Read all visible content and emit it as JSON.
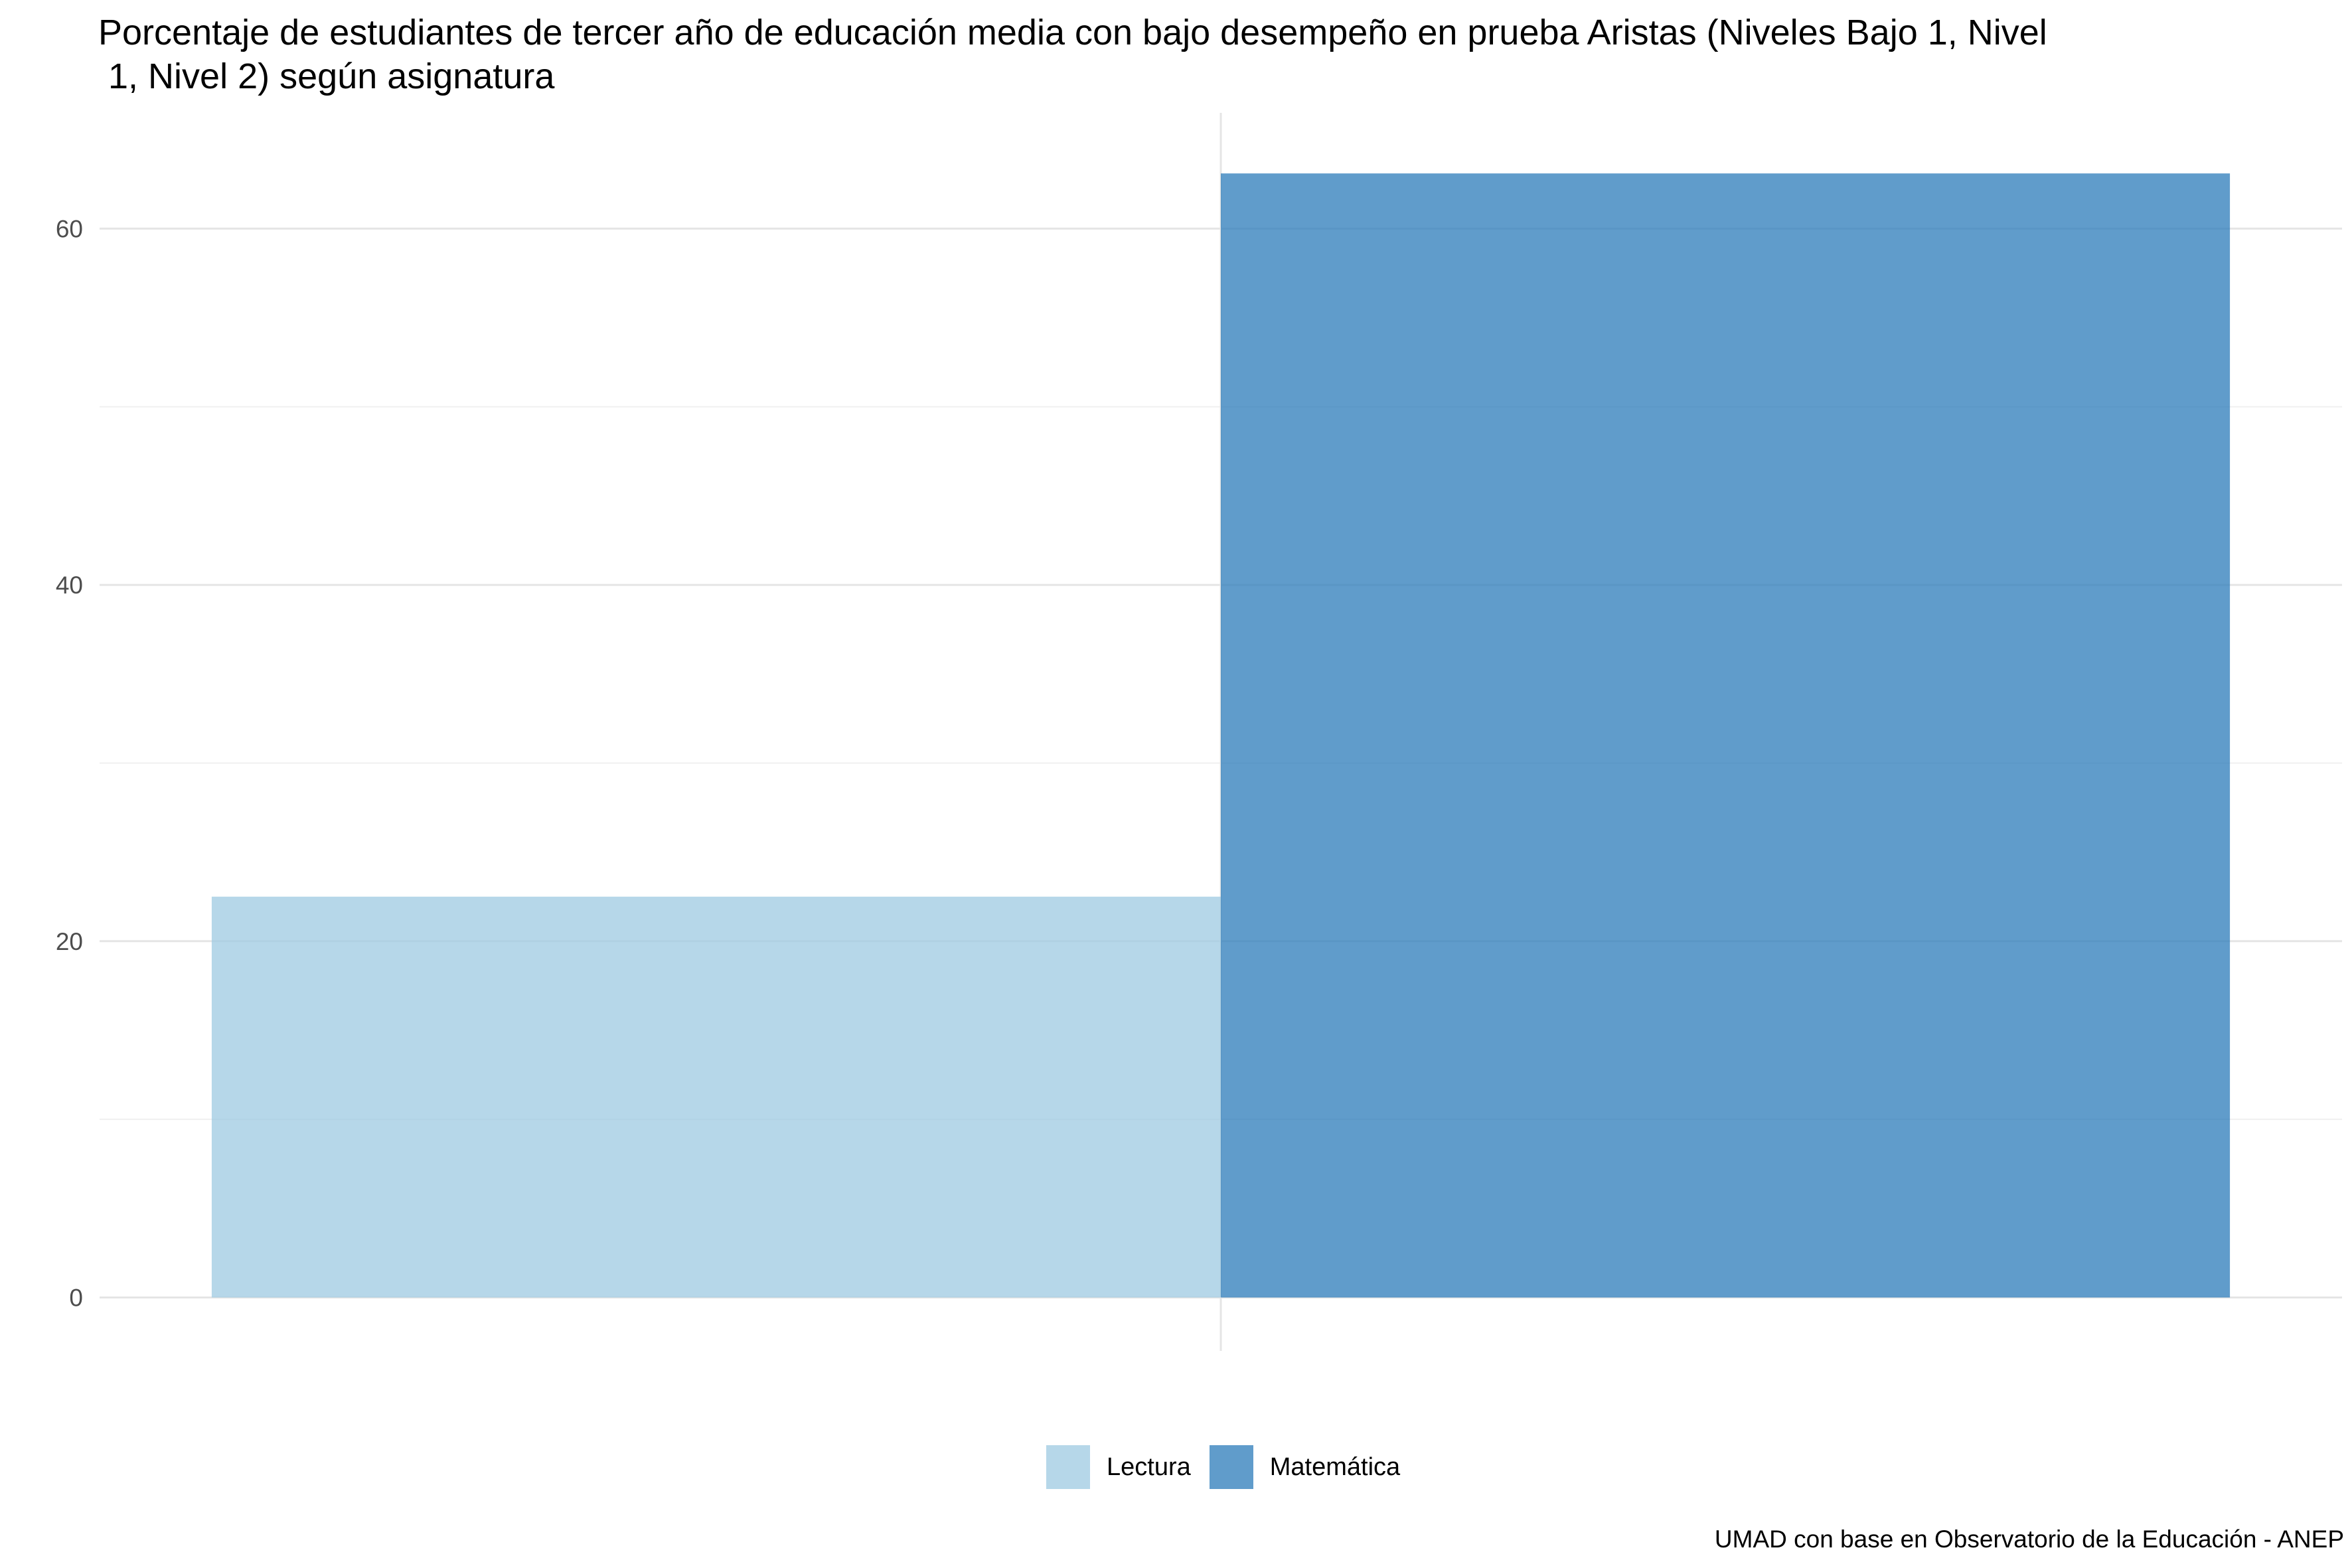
{
  "title": "Porcentaje de estudiantes de tercer año de educación media con bajo desempeño en prueba Aristas (Niveles Bajo 1, Nivel\n 1, Nivel 2) según asignatura",
  "caption": "UMAD con base en Observatorio de la Educación - ANEP",
  "chart_data": {
    "type": "bar",
    "title": "Porcentaje de estudiantes de tercer año de educación media con bajo desempeño en prueba Aristas (Niveles Bajo 1, Nivel\n 1, Nivel 2) según asignatura",
    "xlabel": "",
    "ylabel": "",
    "categories": [
      ""
    ],
    "series": [
      {
        "name": "Lectura",
        "values": [
          22.5
        ],
        "color": "#9ecae1"
      },
      {
        "name": "Matemática",
        "values": [
          63.1
        ],
        "color": "#2b7bba"
      }
    ],
    "bar_opacity": 0.75,
    "ylim": [
      -3,
      66.5
    ],
    "yticks": [
      0,
      20,
      40,
      60
    ],
    "ytick_labels": [
      "0",
      "20",
      "40",
      "60"
    ],
    "grid": true,
    "legend_position": "bottom"
  },
  "legend": [
    {
      "label": "Lectura",
      "color": "#9ecae1"
    },
    {
      "label": "Matemática",
      "color": "#2b7bba"
    }
  ]
}
